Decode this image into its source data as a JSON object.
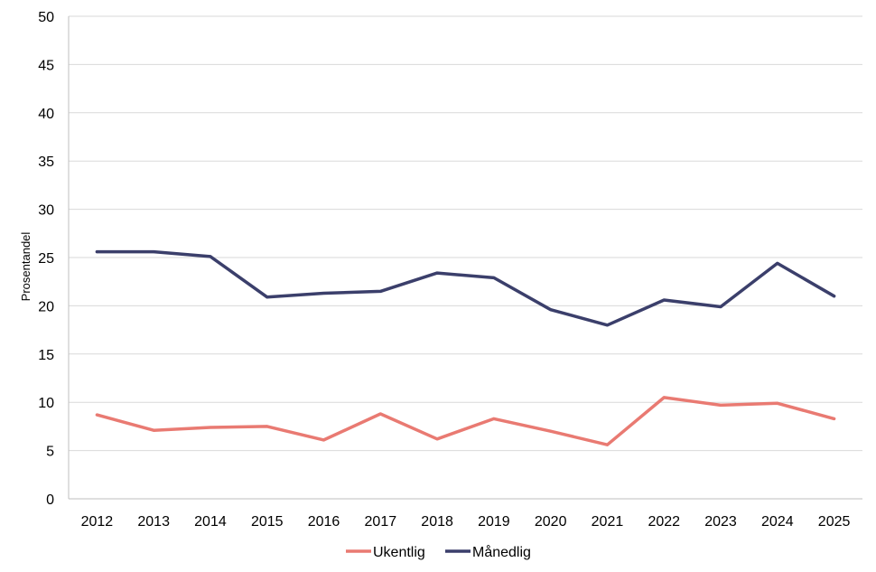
{
  "chart_data": {
    "type": "line",
    "title": "",
    "xlabel": "",
    "ylabel": "Prosentandel",
    "categories": [
      "2012",
      "2013",
      "2014",
      "2015",
      "2016",
      "2017",
      "2018",
      "2019",
      "2020",
      "2021",
      "2022",
      "2023",
      "2024",
      "2025"
    ],
    "ylim": [
      0,
      50
    ],
    "yticks": [
      0,
      5,
      10,
      15,
      20,
      25,
      30,
      35,
      40,
      45,
      50
    ],
    "grid": true,
    "legend_position": "bottom",
    "series": [
      {
        "name": "Ukentlig",
        "color": "#e97a72",
        "values": [
          8.7,
          7.1,
          7.4,
          7.5,
          6.1,
          8.8,
          6.2,
          8.3,
          7.0,
          5.6,
          10.5,
          9.7,
          9.9,
          8.3
        ]
      },
      {
        "name": "Månedlig",
        "color": "#3b3f6b",
        "values": [
          25.6,
          25.6,
          25.1,
          20.9,
          21.3,
          21.5,
          23.4,
          22.9,
          19.6,
          18.0,
          20.6,
          19.9,
          24.4,
          21.0
        ]
      }
    ]
  }
}
